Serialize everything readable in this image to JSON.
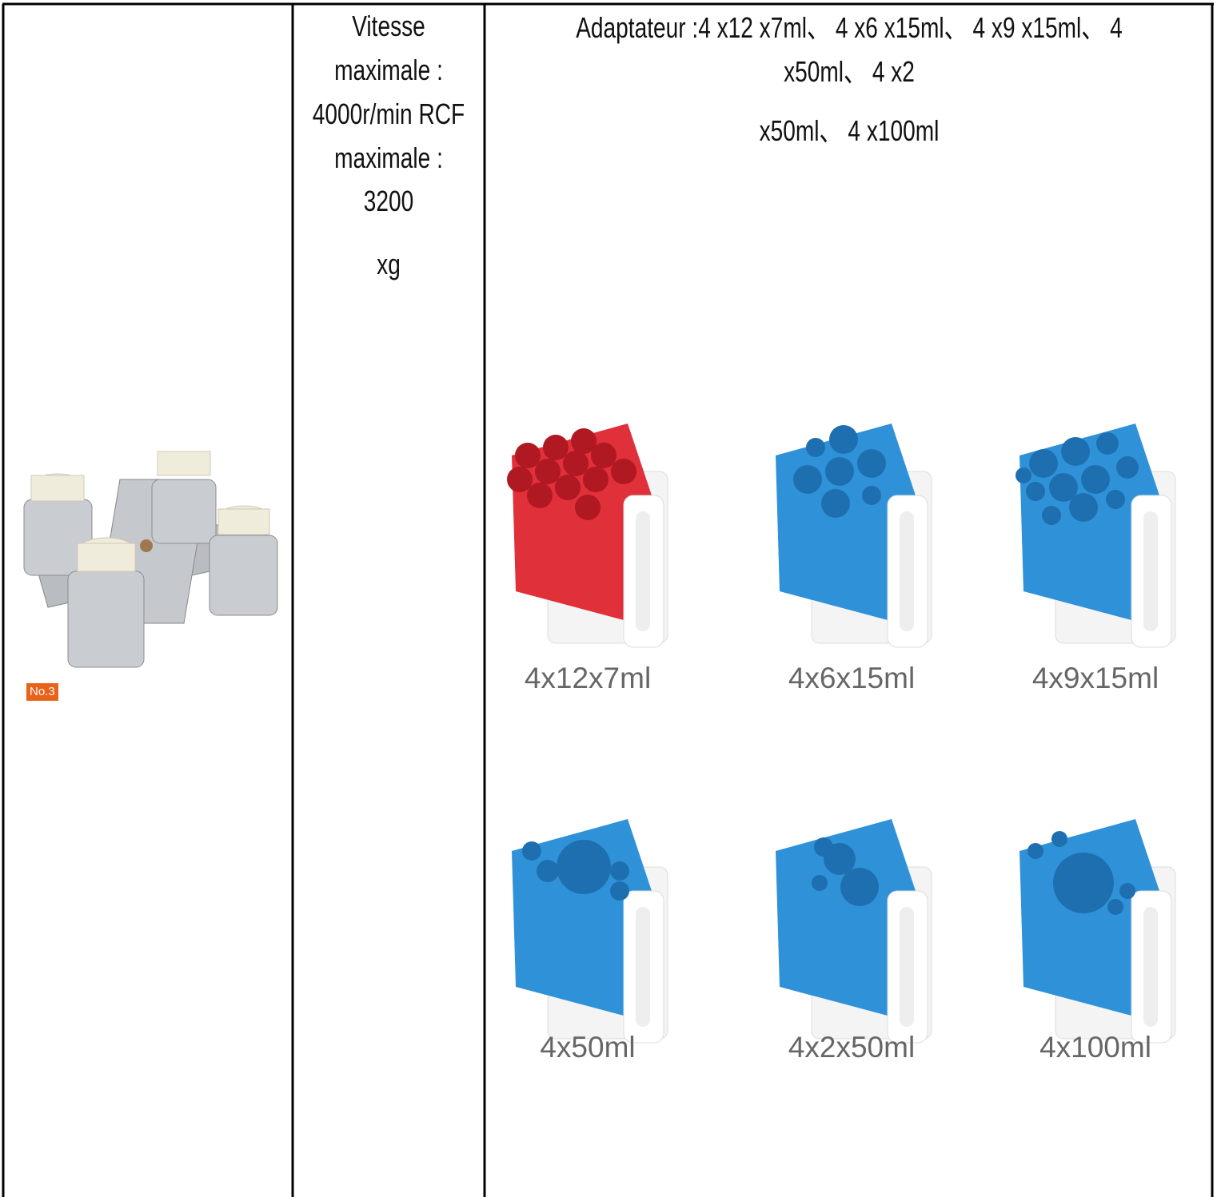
{
  "rotor": {
    "badge": "No.3"
  },
  "specs": {
    "lines": [
      "Vitesse",
      "maximale :",
      "4000r/min RCF",
      "maximale :",
      "3200",
      "xg"
    ]
  },
  "adapters": {
    "description": [
      "Adaptateur :4 x12 x7ml、 4 x6 x15ml、 4 x9 x15ml、 4",
      "x50ml、 4 x2",
      "x50ml、 4 x100ml"
    ],
    "items": [
      "4x12x7ml",
      "4x6x15ml",
      "4x9x15ml",
      "4x50ml",
      "4x2x50ml",
      "4x100ml"
    ]
  }
}
